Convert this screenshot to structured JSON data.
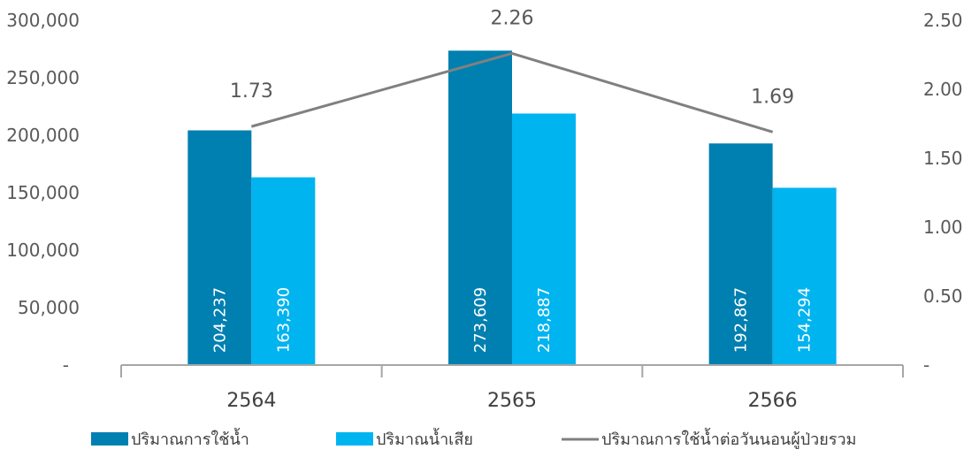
{
  "chart_data": {
    "type": "bar",
    "categories": [
      "2564",
      "2565",
      "2566"
    ],
    "series": [
      {
        "name": "ปริมาณการใช้น้ำ",
        "kind": "bar",
        "axis": "left",
        "color": "#0080B0",
        "values": [
          204237,
          273609,
          192867
        ],
        "labels": [
          "204,237",
          "273,609",
          "192,867"
        ]
      },
      {
        "name": "ปริมาณน้ำเสีย",
        "kind": "bar",
        "axis": "left",
        "color": "#00B4F0",
        "values": [
          163390,
          218887,
          154294
        ],
        "labels": [
          "163,390",
          "218,887",
          "154,294"
        ]
      },
      {
        "name": "ปริมาณการใช้น้ำต่อวันนอนผู้ป่วยรวม",
        "kind": "line",
        "axis": "right",
        "color": "#808080",
        "values": [
          1.73,
          2.26,
          1.69
        ],
        "labels": [
          "1.73",
          "2.26",
          "1.69"
        ]
      }
    ],
    "y_left": {
      "ylim": [
        0,
        300000
      ],
      "ticks": [
        0,
        50000,
        100000,
        150000,
        200000,
        250000,
        300000
      ],
      "tick_labels": [
        "-",
        "50,000",
        "100,000",
        "150,000",
        "200,000",
        "250,000",
        "300,000"
      ]
    },
    "y_right": {
      "ylim": [
        0,
        2.5
      ],
      "ticks": [
        0,
        0.5,
        1.0,
        1.5,
        2.0,
        2.5
      ],
      "tick_labels": [
        "-",
        "0.50",
        "1.00",
        "1.50",
        "2.00",
        "2.50"
      ]
    },
    "title": "",
    "xlabel": "",
    "ylabel": "",
    "grid": false,
    "legend": "bottom"
  }
}
